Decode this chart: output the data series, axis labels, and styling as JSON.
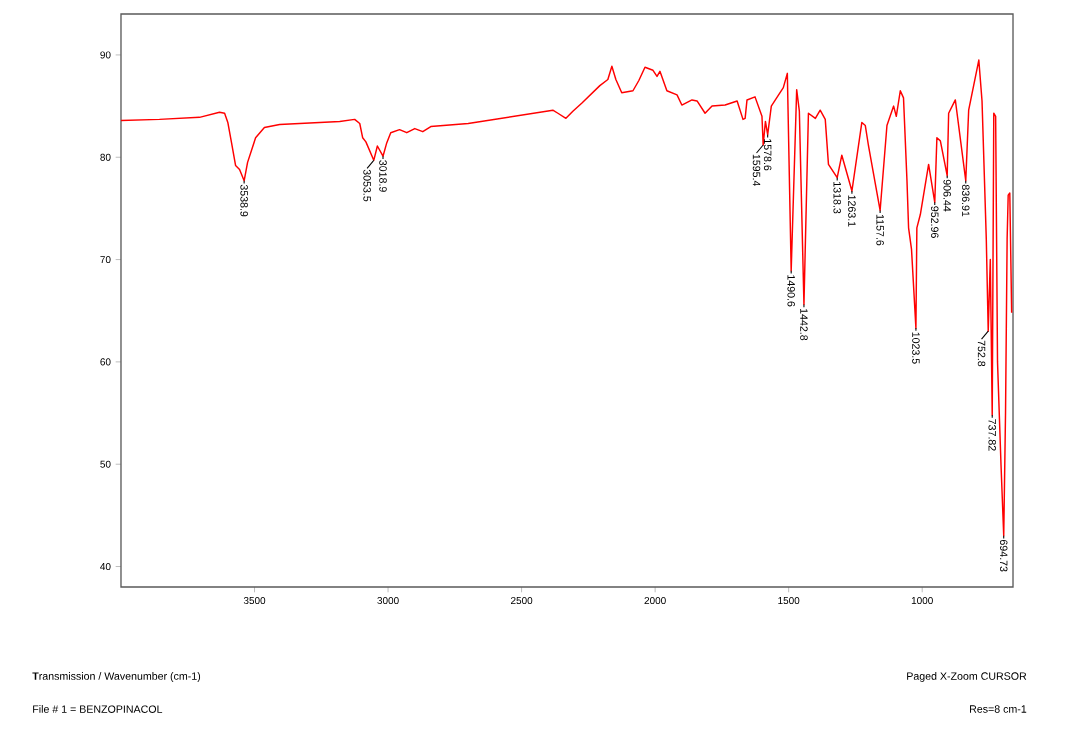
{
  "chart_data": {
    "type": "line",
    "color": "#ff0000",
    "line_style": "solid",
    "marker": "none",
    "xlim": [
      4000,
      660
    ],
    "ylim": [
      38,
      94
    ],
    "xticks": [
      3500,
      3000,
      2500,
      2000,
      1500,
      1000
    ],
    "yticks": [
      40,
      50,
      60,
      70,
      80,
      90
    ],
    "x": [
      4000,
      3856,
      3706,
      3631,
      3612,
      3600,
      3586,
      3571,
      3556,
      3538.9,
      3526,
      3496,
      3463,
      3406,
      3181,
      3125,
      3106,
      3095,
      3083,
      3053.5,
      3040,
      3018.9,
      3005,
      2990,
      2957,
      2930,
      2900,
      2870,
      2840,
      2700,
      2383,
      2364,
      2334,
      2308,
      2274,
      2207,
      2177,
      2162,
      2147,
      2125,
      2083,
      2061,
      2038,
      2008,
      1993,
      1982,
      1956,
      1918,
      1900,
      1862,
      1843,
      1813,
      1787,
      1738,
      1693,
      1671,
      1663,
      1656,
      1626,
      1600,
      1595.4,
      1587,
      1578.6,
      1565,
      1545,
      1520,
      1505,
      1490.6,
      1470,
      1460,
      1442.8,
      1426,
      1400,
      1382,
      1363,
      1351,
      1318.3,
      1301,
      1263.1,
      1226,
      1213,
      1201,
      1157.6,
      1132,
      1107,
      1097,
      1082,
      1070,
      1057,
      1051,
      1040,
      1023.5,
      1020,
      1007,
      976,
      952.96,
      945,
      932,
      906.44,
      901,
      876,
      836.91,
      826,
      788,
      776,
      760,
      752.8,
      745,
      737.82,
      732,
      725,
      718,
      705,
      694.73,
      688,
      682,
      678,
      672,
      665
    ],
    "values": [
      83.6,
      83.7,
      83.9,
      84.4,
      84.3,
      83.4,
      81.4,
      79.2,
      78.8,
      77.7,
      79.5,
      81.9,
      82.9,
      83.2,
      83.5,
      83.7,
      83.3,
      81.9,
      81.5,
      79.7,
      81.1,
      80.1,
      81.4,
      82.4,
      82.7,
      82.4,
      82.8,
      82.5,
      83.0,
      83.3,
      84.6,
      84.3,
      83.8,
      84.5,
      85.3,
      87.0,
      87.6,
      88.9,
      87.6,
      86.3,
      86.5,
      87.5,
      88.8,
      88.5,
      87.9,
      88.4,
      86.5,
      86.1,
      85.1,
      85.6,
      85.5,
      84.3,
      85.0,
      85.1,
      85.5,
      83.7,
      83.8,
      85.6,
      85.9,
      84.0,
      81.2,
      83.5,
      82.2,
      85.0,
      85.8,
      86.8,
      88.2,
      68.9,
      86.6,
      84.5,
      65.6,
      84.3,
      83.8,
      84.6,
      83.7,
      79.3,
      78.0,
      80.2,
      76.7,
      83.4,
      83.1,
      81.1,
      74.8,
      83.1,
      85.0,
      84.0,
      86.5,
      85.8,
      77.7,
      73.1,
      71.0,
      63.3,
      73.1,
      74.4,
      79.3,
      75.6,
      81.9,
      81.6,
      78.2,
      84.3,
      85.6,
      77.7,
      84.6,
      89.5,
      85.5,
      72.0,
      63.0,
      70.0,
      54.8,
      84.3,
      84.0,
      60.0,
      50.0,
      43.0,
      55.0,
      72.0,
      76.3,
      76.5,
      64.8
    ],
    "annotations": [
      {
        "text": "3538.9",
        "x": 3538.9,
        "y": 77.7
      },
      {
        "text": "3053.5",
        "x": 3053.5,
        "y": 79.7
      },
      {
        "text": "3018.9",
        "x": 3018.9,
        "y": 80.1
      },
      {
        "text": "1595.4",
        "x": 1595.4,
        "y": 81.2
      },
      {
        "text": "1578.6",
        "x": 1578.6,
        "y": 82.2
      },
      {
        "text": "1490.6",
        "x": 1490.6,
        "y": 68.9
      },
      {
        "text": "1442.8",
        "x": 1442.8,
        "y": 65.6
      },
      {
        "text": "1318.3",
        "x": 1318.3,
        "y": 78.0
      },
      {
        "text": "1263.1",
        "x": 1263.1,
        "y": 76.7
      },
      {
        "text": "1157.6",
        "x": 1157.6,
        "y": 74.8
      },
      {
        "text": "1023.5",
        "x": 1023.5,
        "y": 63.3
      },
      {
        "text": "952.96",
        "x": 952.96,
        "y": 75.6
      },
      {
        "text": "906.44",
        "x": 906.44,
        "y": 78.2
      },
      {
        "text": "836.91",
        "x": 836.91,
        "y": 77.7
      },
      {
        "text": "752.8",
        "x": 752.8,
        "y": 63.0
      },
      {
        "text": "737.82",
        "x": 737.82,
        "y": 54.8
      },
      {
        "text": "694.73",
        "x": 694.73,
        "y": 43.0
      },
      "**T**ransmission / Wavenumber (cm-1)",
      "Paged   X-Zoom CURSOR",
      "File # 1 = BENZOPINACOL",
      "Res=8 cm-1"
    ]
  }
}
